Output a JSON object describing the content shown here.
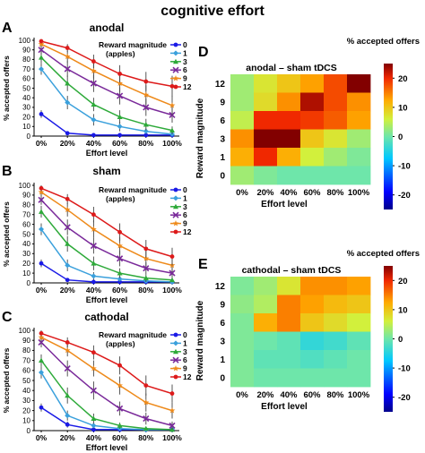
{
  "figure_title": "cognitive effort",
  "chart_data": [
    {
      "type": "line",
      "panel_label": "A",
      "title": "anodal",
      "xlabel": "Effort level",
      "ylabel": "% accepted offers",
      "categories": [
        "0%",
        "20%",
        "40%",
        "60%",
        "80%",
        "100%"
      ],
      "yticks": [
        "0",
        "10",
        "20",
        "30",
        "40",
        "50",
        "60",
        "70",
        "80",
        "90",
        "100"
      ],
      "ylim": [
        0,
        100
      ],
      "legend_title": "Reward magnitude (apples)",
      "legend_position": "top-right",
      "series": [
        {
          "name": "0",
          "color": "#1a1ae6",
          "marker": "circle",
          "values": [
            23,
            3,
            1,
            1,
            1,
            1
          ],
          "errors": [
            4,
            2,
            1,
            1,
            1,
            1
          ]
        },
        {
          "name": "1",
          "color": "#3aa0dc",
          "marker": "diamond",
          "values": [
            70,
            35,
            17,
            10,
            5,
            2
          ],
          "errors": [
            6,
            7,
            6,
            5,
            3,
            2
          ]
        },
        {
          "name": "3",
          "color": "#2eaa3a",
          "marker": "triangle",
          "values": [
            82,
            55,
            33,
            20,
            12,
            6
          ],
          "errors": [
            6,
            8,
            7,
            7,
            6,
            4
          ]
        },
        {
          "name": "6",
          "color": "#7a2a9a",
          "marker": "x",
          "values": [
            90,
            70,
            55,
            42,
            30,
            22
          ],
          "errors": [
            5,
            8,
            9,
            9,
            9,
            8
          ]
        },
        {
          "name": "9",
          "color": "#ee8a1a",
          "marker": "star",
          "values": [
            96,
            83,
            68,
            55,
            43,
            32
          ],
          "errors": [
            3,
            6,
            8,
            9,
            10,
            10
          ]
        },
        {
          "name": "12",
          "color": "#dd1a1a",
          "marker": "circle",
          "values": [
            99,
            92,
            78,
            65,
            57,
            52
          ],
          "errors": [
            2,
            4,
            7,
            9,
            10,
            11
          ]
        }
      ]
    },
    {
      "type": "line",
      "panel_label": "B",
      "title": "sham",
      "xlabel": "Effort level",
      "ylabel": "% accepted offers",
      "categories": [
        "0%",
        "20%",
        "40%",
        "60%",
        "80%",
        "100%"
      ],
      "yticks": [
        "0",
        "10",
        "20",
        "30",
        "40",
        "50",
        "60",
        "70",
        "80",
        "90",
        "100"
      ],
      "ylim": [
        0,
        100
      ],
      "legend_title": "Reward magnitude (apples)",
      "legend_position": "top-right",
      "series": [
        {
          "name": "0",
          "color": "#1a1ae6",
          "marker": "circle",
          "values": [
            20,
            3,
            1,
            1,
            1,
            1
          ],
          "errors": [
            4,
            2,
            1,
            1,
            1,
            1
          ]
        },
        {
          "name": "1",
          "color": "#3aa0dc",
          "marker": "diamond",
          "values": [
            55,
            18,
            7,
            4,
            2,
            1
          ],
          "errors": [
            6,
            6,
            4,
            3,
            2,
            1
          ]
        },
        {
          "name": "3",
          "color": "#2eaa3a",
          "marker": "triangle",
          "values": [
            73,
            40,
            20,
            10,
            5,
            3
          ],
          "errors": [
            6,
            8,
            7,
            5,
            4,
            2
          ]
        },
        {
          "name": "6",
          "color": "#7a2a9a",
          "marker": "x",
          "values": [
            85,
            57,
            38,
            25,
            15,
            10
          ],
          "errors": [
            5,
            8,
            8,
            8,
            6,
            5
          ]
        },
        {
          "name": "9",
          "color": "#ee8a1a",
          "marker": "star",
          "values": [
            93,
            75,
            55,
            38,
            25,
            18
          ],
          "errors": [
            4,
            7,
            9,
            9,
            8,
            7
          ]
        },
        {
          "name": "12",
          "color": "#dd1a1a",
          "marker": "circle",
          "values": [
            97,
            86,
            70,
            52,
            35,
            27
          ],
          "errors": [
            3,
            5,
            8,
            9,
            9,
            9
          ]
        }
      ]
    },
    {
      "type": "line",
      "panel_label": "C",
      "title": "cathodal",
      "xlabel": "Effort level",
      "ylabel": "% accepted offers",
      "categories": [
        "0%",
        "20%",
        "40%",
        "60%",
        "80%",
        "100%"
      ],
      "yticks": [
        "0",
        "10",
        "20",
        "30",
        "40",
        "50",
        "60",
        "70",
        "80",
        "90",
        "100"
      ],
      "ylim": [
        0,
        100
      ],
      "legend_title": "Reward magnitude (apples)",
      "legend_position": "top-right",
      "series": [
        {
          "name": "0",
          "color": "#1a1ae6",
          "marker": "circle",
          "values": [
            23,
            6,
            1,
            1,
            1,
            1
          ],
          "errors": [
            4,
            3,
            1,
            1,
            1,
            1
          ]
        },
        {
          "name": "1",
          "color": "#3aa0dc",
          "marker": "diamond",
          "values": [
            58,
            15,
            5,
            2,
            1,
            1
          ],
          "errors": [
            6,
            5,
            3,
            2,
            1,
            1
          ]
        },
        {
          "name": "3",
          "color": "#2eaa3a",
          "marker": "triangle",
          "values": [
            70,
            35,
            12,
            5,
            2,
            1
          ],
          "errors": [
            6,
            8,
            5,
            3,
            2,
            1
          ]
        },
        {
          "name": "6",
          "color": "#7a2a9a",
          "marker": "x",
          "values": [
            88,
            62,
            40,
            22,
            12,
            5
          ],
          "errors": [
            5,
            8,
            9,
            7,
            6,
            4
          ]
        },
        {
          "name": "9",
          "color": "#ee8a1a",
          "marker": "star",
          "values": [
            93,
            80,
            62,
            45,
            28,
            20
          ],
          "errors": [
            4,
            6,
            8,
            9,
            9,
            8
          ]
        },
        {
          "name": "12",
          "color": "#dd1a1a",
          "marker": "circle",
          "values": [
            97,
            88,
            78,
            65,
            45,
            37
          ],
          "errors": [
            3,
            5,
            7,
            9,
            10,
            9
          ]
        }
      ]
    },
    {
      "type": "heatmap",
      "panel_label": "D",
      "title": "anodal – sham tDCS",
      "colorbar_title": "% accepted offers",
      "colorbar_ticks": [
        "20",
        "10",
        "0",
        "-10",
        "-20"
      ],
      "colorbar_range": [
        -25,
        25
      ],
      "xlabel": "Effort level",
      "ylabel": "Reward magnitude",
      "x_categories": [
        "0%",
        "20%",
        "40%",
        "60%",
        "80%",
        "100%"
      ],
      "y_categories": [
        "12",
        "9",
        "6",
        "3",
        "1",
        "0"
      ],
      "values": [
        [
          3,
          7,
          10,
          13,
          18,
          25
        ],
        [
          3,
          8,
          14,
          23,
          18,
          14
        ],
        [
          5,
          20,
          20,
          19,
          17,
          13
        ],
        [
          14,
          25,
          25,
          10,
          7,
          3
        ],
        [
          12,
          20,
          12,
          6,
          3,
          1
        ],
        [
          3,
          1,
          0,
          0,
          0,
          0
        ]
      ]
    },
    {
      "type": "heatmap",
      "panel_label": "E",
      "title": "cathodal – sham tDCS",
      "colorbar_title": "% accepted offers",
      "colorbar_ticks": [
        "20",
        "10",
        "0",
        "-10",
        "-20"
      ],
      "colorbar_range": [
        -25,
        25
      ],
      "xlabel": "Effort level",
      "ylabel": "Reward magnitude",
      "x_categories": [
        "0%",
        "20%",
        "40%",
        "60%",
        "80%",
        "100%"
      ],
      "y_categories": [
        "12",
        "9",
        "6",
        "3",
        "1",
        "0"
      ],
      "values": [
        [
          1,
          3,
          7,
          14,
          14,
          13
        ],
        [
          2,
          4,
          15,
          13,
          11,
          10
        ],
        [
          1,
          12,
          15,
          10,
          8,
          6
        ],
        [
          1,
          0,
          -1,
          -4,
          -3,
          -1
        ],
        [
          1,
          -1,
          -1,
          -2,
          -1,
          0
        ],
        [
          1,
          0,
          0,
          0,
          0,
          0
        ]
      ]
    }
  ]
}
